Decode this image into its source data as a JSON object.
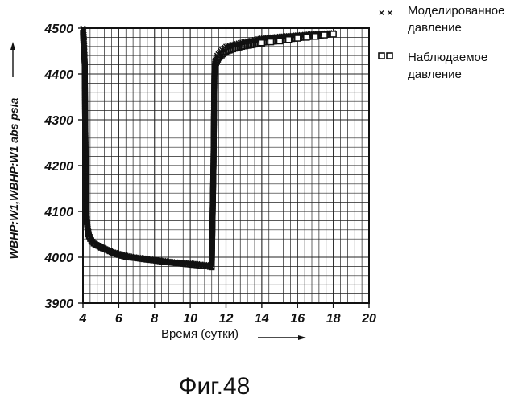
{
  "chart_data": {
    "type": "scatter",
    "ylabel": "WBHP:W1,WBHP:W1  abs  psia",
    "xlabel": "Время (сутки)",
    "xlim": [
      4,
      20
    ],
    "ylim": [
      3900,
      4500
    ],
    "xticks": [
      "4",
      "6",
      "8",
      "10",
      "12",
      "14",
      "16",
      "18",
      "20"
    ],
    "yticks": [
      "3900",
      "4000",
      "4100",
      "4200",
      "4300",
      "4400",
      "4500"
    ],
    "grid": true,
    "legend_position": "top-right",
    "series": [
      {
        "name": "Моделированное давление",
        "marker": "x",
        "x": [
          4.0,
          4.05,
          4.1,
          4.12,
          4.15,
          4.18,
          4.2,
          4.25,
          4.3,
          4.35,
          4.4,
          4.5,
          4.6,
          4.8,
          5.0,
          5.5,
          6.0,
          6.5,
          7.0,
          8.0,
          9.0,
          10.0,
          10.5,
          11.0,
          11.1,
          11.2,
          11.25,
          11.3,
          11.32,
          11.35,
          11.4,
          11.5,
          11.7,
          12.0,
          12.5,
          13.0,
          14.0,
          15.0,
          16.0,
          17.0,
          18.0
        ],
        "y": [
          4500,
          4490,
          4450,
          4350,
          4250,
          4150,
          4100,
          4075,
          4060,
          4050,
          4045,
          4035,
          4030,
          4025,
          4020,
          4013,
          4008,
          4003,
          4000,
          3995,
          3990,
          3987,
          3985,
          3983,
          3982,
          3984,
          4100,
          4250,
          4350,
          4420,
          4430,
          4440,
          4450,
          4460,
          4465,
          4470,
          4478,
          4482,
          4485,
          4488,
          4490
        ]
      },
      {
        "name": "Наблюдаемое давление",
        "marker": "square",
        "x": [
          4.0,
          4.1,
          4.12,
          4.15,
          4.2,
          4.3,
          4.4,
          4.6,
          5.0,
          5.5,
          6.0,
          6.5,
          7.0,
          7.5,
          8.0,
          8.5,
          9.0,
          9.5,
          10.0,
          10.5,
          11.0,
          11.2,
          11.3,
          11.35,
          11.4,
          11.6,
          12.0,
          12.5,
          13.0,
          13.5,
          14.0,
          14.5,
          15.0,
          15.5,
          16.0,
          16.5,
          17.0,
          17.5,
          18.0
        ],
        "y": [
          4490,
          4420,
          4300,
          4200,
          4080,
          4050,
          4040,
          4030,
          4022,
          4013,
          4005,
          4000,
          3998,
          3995,
          3993,
          3990,
          3988,
          3986,
          3984,
          3982,
          3980,
          3978,
          4200,
          4400,
          4420,
          4435,
          4448,
          4455,
          4460,
          4463,
          4468,
          4470,
          4472,
          4475,
          4478,
          4480,
          4482,
          4485,
          4487
        ]
      }
    ]
  },
  "legend": {
    "item1_line1": "Моделированное",
    "item1_line2": "давление",
    "item2_line1": "Наблюдаемое",
    "item2_line2": "давление"
  },
  "caption": "Фиг.48",
  "colors": {
    "ink": "#111111",
    "grid": "#222222",
    "background": "#ffffff"
  }
}
